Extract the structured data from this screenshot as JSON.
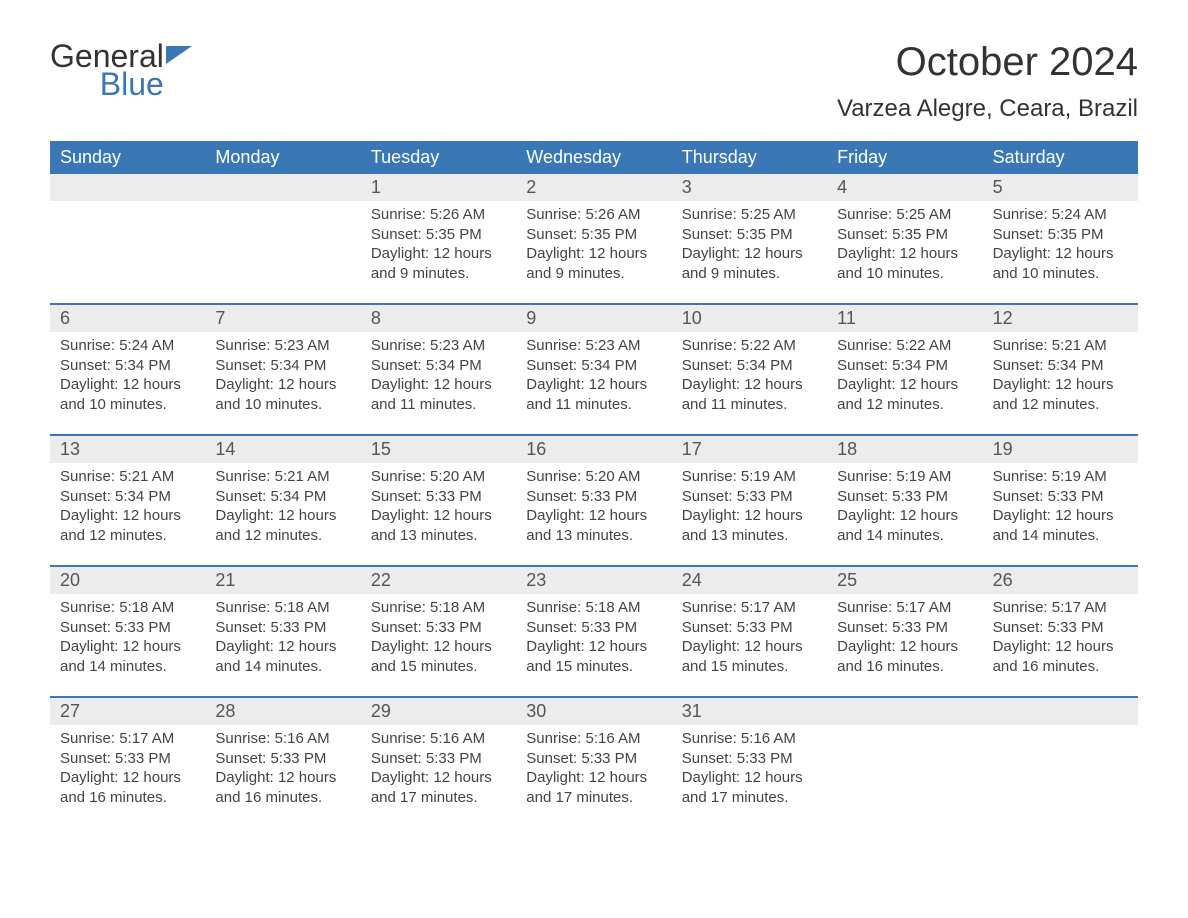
{
  "logo": {
    "general": "General",
    "blue": "Blue"
  },
  "title": "October 2024",
  "location": "Varzea Alegre, Ceara, Brazil",
  "colors": {
    "header_bg": "#3a77b7",
    "header_text": "#ffffff",
    "daynum_bg": "#ececec",
    "text": "#333333",
    "accent": "#3a77b7"
  },
  "day_names": [
    "Sunday",
    "Monday",
    "Tuesday",
    "Wednesday",
    "Thursday",
    "Friday",
    "Saturday"
  ],
  "weeks": [
    [
      {
        "n": "",
        "sr": "",
        "ss": "",
        "dl": ""
      },
      {
        "n": "",
        "sr": "",
        "ss": "",
        "dl": ""
      },
      {
        "n": "1",
        "sr": "Sunrise: 5:26 AM",
        "ss": "Sunset: 5:35 PM",
        "dl": "Daylight: 12 hours and 9 minutes."
      },
      {
        "n": "2",
        "sr": "Sunrise: 5:26 AM",
        "ss": "Sunset: 5:35 PM",
        "dl": "Daylight: 12 hours and 9 minutes."
      },
      {
        "n": "3",
        "sr": "Sunrise: 5:25 AM",
        "ss": "Sunset: 5:35 PM",
        "dl": "Daylight: 12 hours and 9 minutes."
      },
      {
        "n": "4",
        "sr": "Sunrise: 5:25 AM",
        "ss": "Sunset: 5:35 PM",
        "dl": "Daylight: 12 hours and 10 minutes."
      },
      {
        "n": "5",
        "sr": "Sunrise: 5:24 AM",
        "ss": "Sunset: 5:35 PM",
        "dl": "Daylight: 12 hours and 10 minutes."
      }
    ],
    [
      {
        "n": "6",
        "sr": "Sunrise: 5:24 AM",
        "ss": "Sunset: 5:34 PM",
        "dl": "Daylight: 12 hours and 10 minutes."
      },
      {
        "n": "7",
        "sr": "Sunrise: 5:23 AM",
        "ss": "Sunset: 5:34 PM",
        "dl": "Daylight: 12 hours and 10 minutes."
      },
      {
        "n": "8",
        "sr": "Sunrise: 5:23 AM",
        "ss": "Sunset: 5:34 PM",
        "dl": "Daylight: 12 hours and 11 minutes."
      },
      {
        "n": "9",
        "sr": "Sunrise: 5:23 AM",
        "ss": "Sunset: 5:34 PM",
        "dl": "Daylight: 12 hours and 11 minutes."
      },
      {
        "n": "10",
        "sr": "Sunrise: 5:22 AM",
        "ss": "Sunset: 5:34 PM",
        "dl": "Daylight: 12 hours and 11 minutes."
      },
      {
        "n": "11",
        "sr": "Sunrise: 5:22 AM",
        "ss": "Sunset: 5:34 PM",
        "dl": "Daylight: 12 hours and 12 minutes."
      },
      {
        "n": "12",
        "sr": "Sunrise: 5:21 AM",
        "ss": "Sunset: 5:34 PM",
        "dl": "Daylight: 12 hours and 12 minutes."
      }
    ],
    [
      {
        "n": "13",
        "sr": "Sunrise: 5:21 AM",
        "ss": "Sunset: 5:34 PM",
        "dl": "Daylight: 12 hours and 12 minutes."
      },
      {
        "n": "14",
        "sr": "Sunrise: 5:21 AM",
        "ss": "Sunset: 5:34 PM",
        "dl": "Daylight: 12 hours and 12 minutes."
      },
      {
        "n": "15",
        "sr": "Sunrise: 5:20 AM",
        "ss": "Sunset: 5:33 PM",
        "dl": "Daylight: 12 hours and 13 minutes."
      },
      {
        "n": "16",
        "sr": "Sunrise: 5:20 AM",
        "ss": "Sunset: 5:33 PM",
        "dl": "Daylight: 12 hours and 13 minutes."
      },
      {
        "n": "17",
        "sr": "Sunrise: 5:19 AM",
        "ss": "Sunset: 5:33 PM",
        "dl": "Daylight: 12 hours and 13 minutes."
      },
      {
        "n": "18",
        "sr": "Sunrise: 5:19 AM",
        "ss": "Sunset: 5:33 PM",
        "dl": "Daylight: 12 hours and 14 minutes."
      },
      {
        "n": "19",
        "sr": "Sunrise: 5:19 AM",
        "ss": "Sunset: 5:33 PM",
        "dl": "Daylight: 12 hours and 14 minutes."
      }
    ],
    [
      {
        "n": "20",
        "sr": "Sunrise: 5:18 AM",
        "ss": "Sunset: 5:33 PM",
        "dl": "Daylight: 12 hours and 14 minutes."
      },
      {
        "n": "21",
        "sr": "Sunrise: 5:18 AM",
        "ss": "Sunset: 5:33 PM",
        "dl": "Daylight: 12 hours and 14 minutes."
      },
      {
        "n": "22",
        "sr": "Sunrise: 5:18 AM",
        "ss": "Sunset: 5:33 PM",
        "dl": "Daylight: 12 hours and 15 minutes."
      },
      {
        "n": "23",
        "sr": "Sunrise: 5:18 AM",
        "ss": "Sunset: 5:33 PM",
        "dl": "Daylight: 12 hours and 15 minutes."
      },
      {
        "n": "24",
        "sr": "Sunrise: 5:17 AM",
        "ss": "Sunset: 5:33 PM",
        "dl": "Daylight: 12 hours and 15 minutes."
      },
      {
        "n": "25",
        "sr": "Sunrise: 5:17 AM",
        "ss": "Sunset: 5:33 PM",
        "dl": "Daylight: 12 hours and 16 minutes."
      },
      {
        "n": "26",
        "sr": "Sunrise: 5:17 AM",
        "ss": "Sunset: 5:33 PM",
        "dl": "Daylight: 12 hours and 16 minutes."
      }
    ],
    [
      {
        "n": "27",
        "sr": "Sunrise: 5:17 AM",
        "ss": "Sunset: 5:33 PM",
        "dl": "Daylight: 12 hours and 16 minutes."
      },
      {
        "n": "28",
        "sr": "Sunrise: 5:16 AM",
        "ss": "Sunset: 5:33 PM",
        "dl": "Daylight: 12 hours and 16 minutes."
      },
      {
        "n": "29",
        "sr": "Sunrise: 5:16 AM",
        "ss": "Sunset: 5:33 PM",
        "dl": "Daylight: 12 hours and 17 minutes."
      },
      {
        "n": "30",
        "sr": "Sunrise: 5:16 AM",
        "ss": "Sunset: 5:33 PM",
        "dl": "Daylight: 12 hours and 17 minutes."
      },
      {
        "n": "31",
        "sr": "Sunrise: 5:16 AM",
        "ss": "Sunset: 5:33 PM",
        "dl": "Daylight: 12 hours and 17 minutes."
      },
      {
        "n": "",
        "sr": "",
        "ss": "",
        "dl": ""
      },
      {
        "n": "",
        "sr": "",
        "ss": "",
        "dl": ""
      }
    ]
  ]
}
